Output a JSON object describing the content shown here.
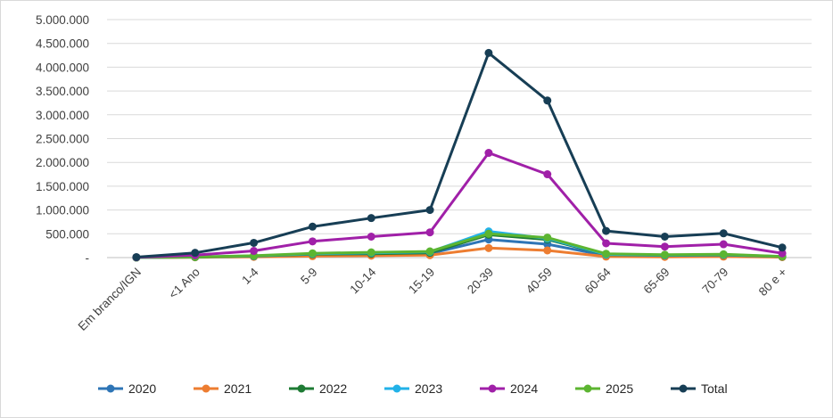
{
  "chart_data": {
    "type": "line",
    "title": "",
    "xlabel": "",
    "ylabel": "",
    "ylim": [
      0,
      5000000
    ],
    "y_ticks": [
      {
        "value": 0,
        "label": "-"
      },
      {
        "value": 500000,
        "label": "500.000"
      },
      {
        "value": 1000000,
        "label": "1.000.000"
      },
      {
        "value": 1500000,
        "label": "1.500.000"
      },
      {
        "value": 2000000,
        "label": "2.000.000"
      },
      {
        "value": 2500000,
        "label": "2.500.000"
      },
      {
        "value": 3000000,
        "label": "3.000.000"
      },
      {
        "value": 3500000,
        "label": "3.500.000"
      },
      {
        "value": 4000000,
        "label": "4.000.000"
      },
      {
        "value": 4500000,
        "label": "4.500.000"
      },
      {
        "value": 5000000,
        "label": "5.000.000"
      }
    ],
    "categories": [
      "Em branco/IGN",
      "<1 Ano",
      "1-4",
      "5-9",
      "10-14",
      "15-19",
      "20-39",
      "40-59",
      "60-64",
      "65-69",
      "70-79",
      "80 e +"
    ],
    "legend_position": "bottom",
    "series": [
      {
        "name": "2020",
        "color": "#2e75b6",
        "values": [
          1000,
          10000,
          25000,
          55000,
          70000,
          85000,
          380000,
          280000,
          40000,
          30000,
          40000,
          15000
        ]
      },
      {
        "name": "2021",
        "color": "#ed7d31",
        "values": [
          1000,
          5000,
          15000,
          30000,
          40000,
          50000,
          200000,
          150000,
          20000,
          15000,
          20000,
          10000
        ]
      },
      {
        "name": "2022",
        "color": "#1e7b34",
        "values": [
          1000,
          10000,
          30000,
          70000,
          80000,
          100000,
          480000,
          380000,
          60000,
          45000,
          55000,
          20000
        ]
      },
      {
        "name": "2023",
        "color": "#22b2e8",
        "values": [
          1000,
          15000,
          35000,
          80000,
          100000,
          120000,
          550000,
          400000,
          65000,
          50000,
          60000,
          25000
        ]
      },
      {
        "name": "2024",
        "color": "#a020a8",
        "values": [
          5000,
          50000,
          140000,
          340000,
          440000,
          530000,
          2200000,
          1750000,
          300000,
          230000,
          280000,
          90000
        ]
      },
      {
        "name": "2025",
        "color": "#5cb531",
        "values": [
          1000,
          15000,
          40000,
          90000,
          110000,
          130000,
          500000,
          420000,
          80000,
          60000,
          70000,
          25000
        ]
      },
      {
        "name": "Total",
        "color": "#173e55",
        "values": [
          10000,
          100000,
          310000,
          650000,
          830000,
          1000000,
          4300000,
          3300000,
          560000,
          440000,
          510000,
          210000
        ]
      }
    ]
  }
}
